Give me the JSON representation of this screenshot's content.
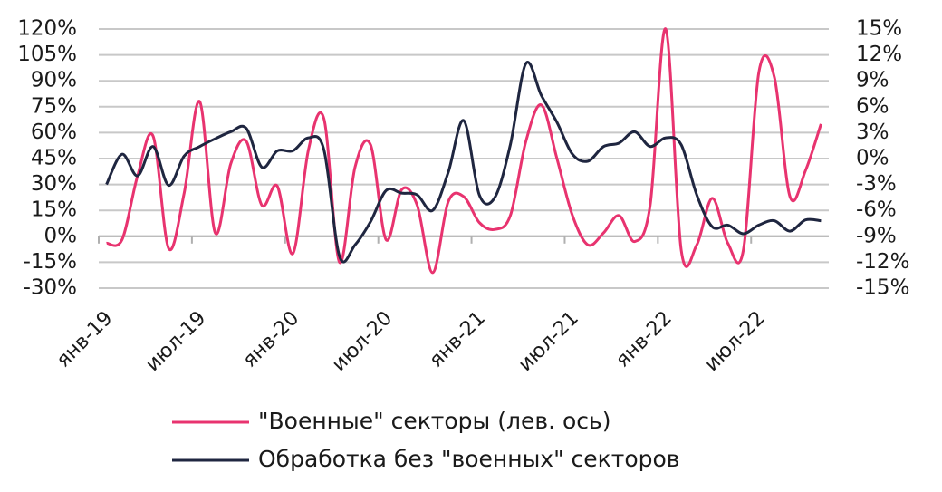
{
  "chart_data": {
    "type": "line",
    "categories": [
      "янв-19",
      null,
      null,
      null,
      null,
      null,
      "июл-19",
      null,
      null,
      null,
      null,
      null,
      "янв-20",
      null,
      null,
      null,
      null,
      null,
      "июл-20",
      null,
      null,
      null,
      null,
      null,
      "янв-21",
      null,
      null,
      null,
      null,
      null,
      "июл-21",
      null,
      null,
      null,
      null,
      null,
      "янв-22",
      null,
      null,
      null,
      null,
      null,
      "июл-22",
      null,
      null,
      null,
      null
    ],
    "series": [
      {
        "name": "\"Военные\" секторы (лев. ось)",
        "color": "#e8336f",
        "axis": "y",
        "values": [
          -4,
          -2,
          35,
          58,
          -7,
          25,
          78,
          2,
          42,
          55,
          18,
          29,
          -10,
          50,
          68,
          -15,
          40,
          53,
          -2,
          27,
          18,
          -21,
          20,
          23,
          8,
          4,
          12,
          55,
          76,
          45,
          12,
          -5,
          2,
          12,
          -3,
          18,
          120,
          -8,
          -5,
          22,
          -4,
          -8,
          95,
          92,
          23,
          38,
          65
        ]
      },
      {
        "name": "Обработка без \"военных\" секторов",
        "color": "#1f2640",
        "axis": "y2",
        "values": [
          -3,
          0.5,
          -2,
          1.4,
          -3.1,
          0.3,
          1.4,
          2.3,
          3.1,
          3.5,
          -1,
          0.9,
          0.9,
          2.4,
          1,
          -11.3,
          -10,
          -7.3,
          -3.7,
          -4,
          -4.2,
          -6,
          -1.6,
          4.4,
          -4.2,
          -4.5,
          1.6,
          11,
          7.3,
          4.2,
          0.5,
          -0.3,
          1.4,
          1.8,
          3.1,
          1.4,
          2.4,
          1.6,
          -4.2,
          -7.9,
          -7.7,
          -8.7,
          -7.7,
          -7.2,
          -8.4,
          -7.1,
          -7.2
        ]
      }
    ],
    "ylim": [
      -30,
      120
    ],
    "yticks": [
      {
        "value": -30,
        "label": "-30%"
      },
      {
        "value": -15,
        "label": "-15%"
      },
      {
        "value": 0,
        "label": "0%"
      },
      {
        "value": 15,
        "label": "15%"
      },
      {
        "value": 30,
        "label": "30%"
      },
      {
        "value": 45,
        "label": "45%"
      },
      {
        "value": 60,
        "label": "60%"
      },
      {
        "value": 75,
        "label": "75%"
      },
      {
        "value": 90,
        "label": "90%"
      },
      {
        "value": 105,
        "label": "105%"
      },
      {
        "value": 120,
        "label": "120%"
      }
    ],
    "y2lim": [
      -15,
      15
    ],
    "y2ticks": [
      {
        "value": -15,
        "label": "-15%"
      },
      {
        "value": -12,
        "label": "-12%"
      },
      {
        "value": -9,
        "label": "-9%"
      },
      {
        "value": -6,
        "label": "-6%"
      },
      {
        "value": -3,
        "label": "-3%"
      },
      {
        "value": 0,
        "label": "0%"
      },
      {
        "value": 3,
        "label": "3%"
      },
      {
        "value": 6,
        "label": "6%"
      },
      {
        "value": 9,
        "label": "9%"
      },
      {
        "value": 12,
        "label": "12%"
      },
      {
        "value": 15,
        "label": "15%"
      }
    ],
    "grid": true,
    "legend": "bottom"
  }
}
